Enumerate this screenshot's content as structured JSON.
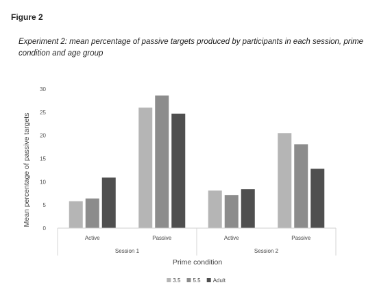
{
  "figure_label": "Figure 2",
  "caption": "Experiment 2: mean percentage of passive targets produced by participants in each session, prime condition and age group",
  "chart_data": {
    "type": "bar",
    "categories": [
      "Active",
      "Passive",
      "Active",
      "Passive"
    ],
    "groups": [
      {
        "label": "Session 1",
        "categories": [
          "Active",
          "Passive"
        ]
      },
      {
        "label": "Session 2",
        "categories": [
          "Active",
          "Passive"
        ]
      }
    ],
    "series": [
      {
        "name": "3.5",
        "color": "#b5b5b5",
        "values": [
          5.8,
          26.0,
          8.1,
          20.5
        ]
      },
      {
        "name": "5.5",
        "color": "#8c8c8c",
        "values": [
          6.4,
          28.6,
          7.1,
          18.1
        ]
      },
      {
        "name": "Adult",
        "color": "#4f4f4f",
        "values": [
          10.9,
          24.7,
          8.4,
          12.8
        ]
      }
    ],
    "xlabel": "Prime condition",
    "ylabel": "Mean percentage of passive targets",
    "ylim": [
      0,
      30
    ],
    "yticks": [
      0,
      5,
      10,
      15,
      20,
      25,
      30
    ],
    "grid": false,
    "legend_position": "bottom-center"
  }
}
